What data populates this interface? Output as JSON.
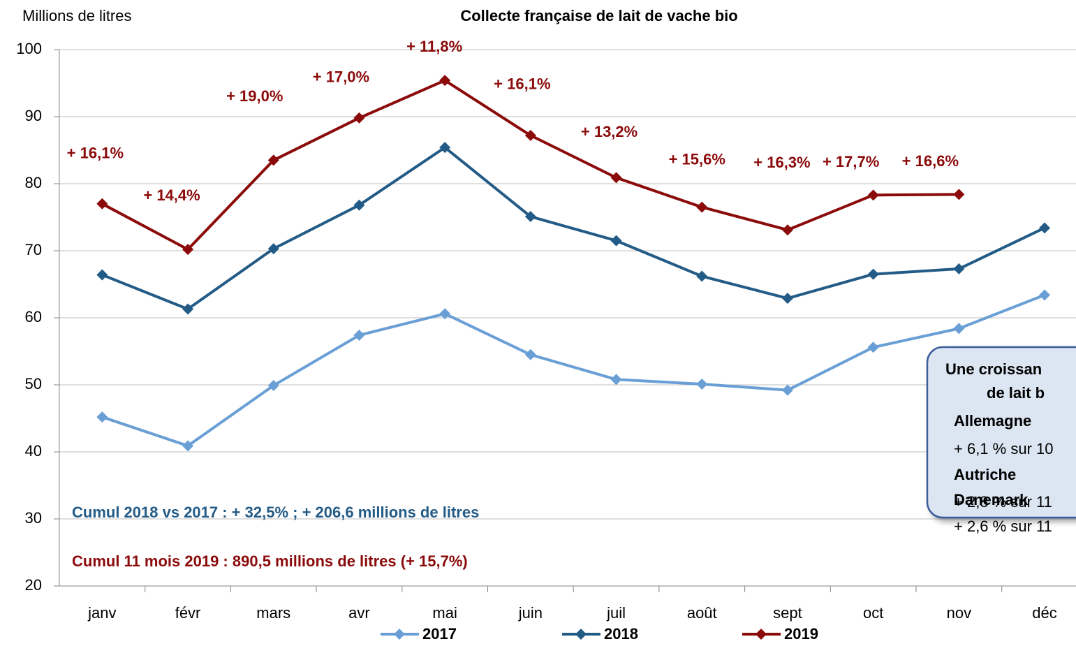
{
  "chart_data": {
    "type": "line",
    "title": "Collecte française de lait de vache bio",
    "y_label": "Millions de litres",
    "categories": [
      "janv",
      "févr",
      "mars",
      "avr",
      "mai",
      "juin",
      "juil",
      "août",
      "sept",
      "oct",
      "nov",
      "déc"
    ],
    "series": [
      {
        "name": "2017",
        "color": "#6a9fd6",
        "values": [
          45.2,
          40.9,
          49.9,
          57.4,
          60.6,
          54.5,
          50.8,
          50.1,
          49.2,
          55.6,
          58.4,
          63.4
        ]
      },
      {
        "name": "2018",
        "color": "#235b87",
        "values": [
          66.4,
          61.3,
          70.3,
          76.8,
          85.4,
          75.1,
          71.5,
          66.2,
          62.9,
          66.5,
          67.3,
          73.4
        ]
      },
      {
        "name": "2019",
        "color": "#8b0a0a",
        "values": [
          77.0,
          70.2,
          83.5,
          89.8,
          95.4,
          87.2,
          80.9,
          76.5,
          73.1,
          78.3,
          78.4,
          null
        ],
        "growth_labels": [
          "+ 16,1%",
          "+ 14,4%",
          "+ 19,0%",
          "+ 17,0%",
          "+ 11,8%",
          "+ 16,1%",
          "+ 13,2%",
          "+ 15,6%",
          "+ 16,3%",
          "+ 17,7%",
          "+ 16,6%",
          null
        ]
      }
    ],
    "ylim": [
      20,
      100
    ],
    "yticks": [
      20,
      30,
      40,
      50,
      60,
      70,
      80,
      90,
      100
    ],
    "grid": true,
    "annotations": [
      "Cumul 2018 vs 2017 : + 32,5% ; + 206,6 millions de litres",
      "Cumul 11 mois 2019 : 890,5 millions de litres (+ 15,7%)"
    ],
    "callout": [
      "Une croissan",
      "de lait b",
      "Allemagne",
      "+ 6,1 % sur 10",
      "Autriche",
      "+ 2,8 % sur 11",
      "Danemark",
      "+ 2,6 % sur 11"
    ]
  }
}
